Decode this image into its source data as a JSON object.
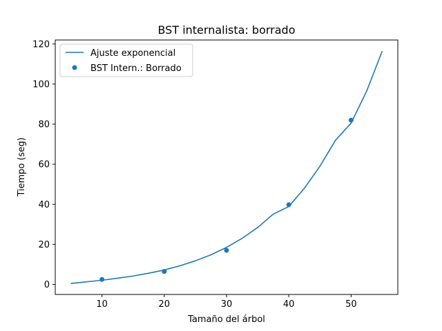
{
  "chart_data": {
    "type": "scatter",
    "title": "BST internalista: borrado",
    "xlabel": "Tamaño del árbol",
    "ylabel": "Tiempo (seg)",
    "xlim": [
      2.5,
      57.5
    ],
    "ylim": [
      -5,
      122
    ],
    "xticks": [
      "10",
      "20",
      "30",
      "40",
      "50"
    ],
    "yticks": [
      "0",
      "20",
      "40",
      "60",
      "80",
      "100",
      "120"
    ],
    "grid": false,
    "legend_position": "top-left",
    "series": [
      {
        "name": "Ajuste exponencial",
        "kind": "line",
        "color": "#1f77b4",
        "x": [
          5,
          7.5,
          10,
          12.5,
          15,
          17.5,
          20,
          22.5,
          25,
          27.5,
          30,
          32.5,
          35,
          37.5,
          40,
          42.5,
          45,
          47.5,
          50,
          52.5,
          55
        ],
        "y": [
          0.5,
          1.3,
          2.1,
          3.1,
          4.2,
          5.6,
          7.2,
          9.3,
          11.8,
          14.8,
          18.5,
          23.0,
          28.4,
          35.1,
          38.9,
          48.0,
          59.0,
          72.0,
          80.5,
          96.5,
          116.5
        ]
      },
      {
        "name": "BST Intern.: Borrado",
        "kind": "scatter",
        "color": "#1f77b4",
        "x": [
          10,
          20,
          30,
          40,
          50
        ],
        "y": [
          2.5,
          6.5,
          17,
          39.8,
          82
        ]
      }
    ]
  }
}
